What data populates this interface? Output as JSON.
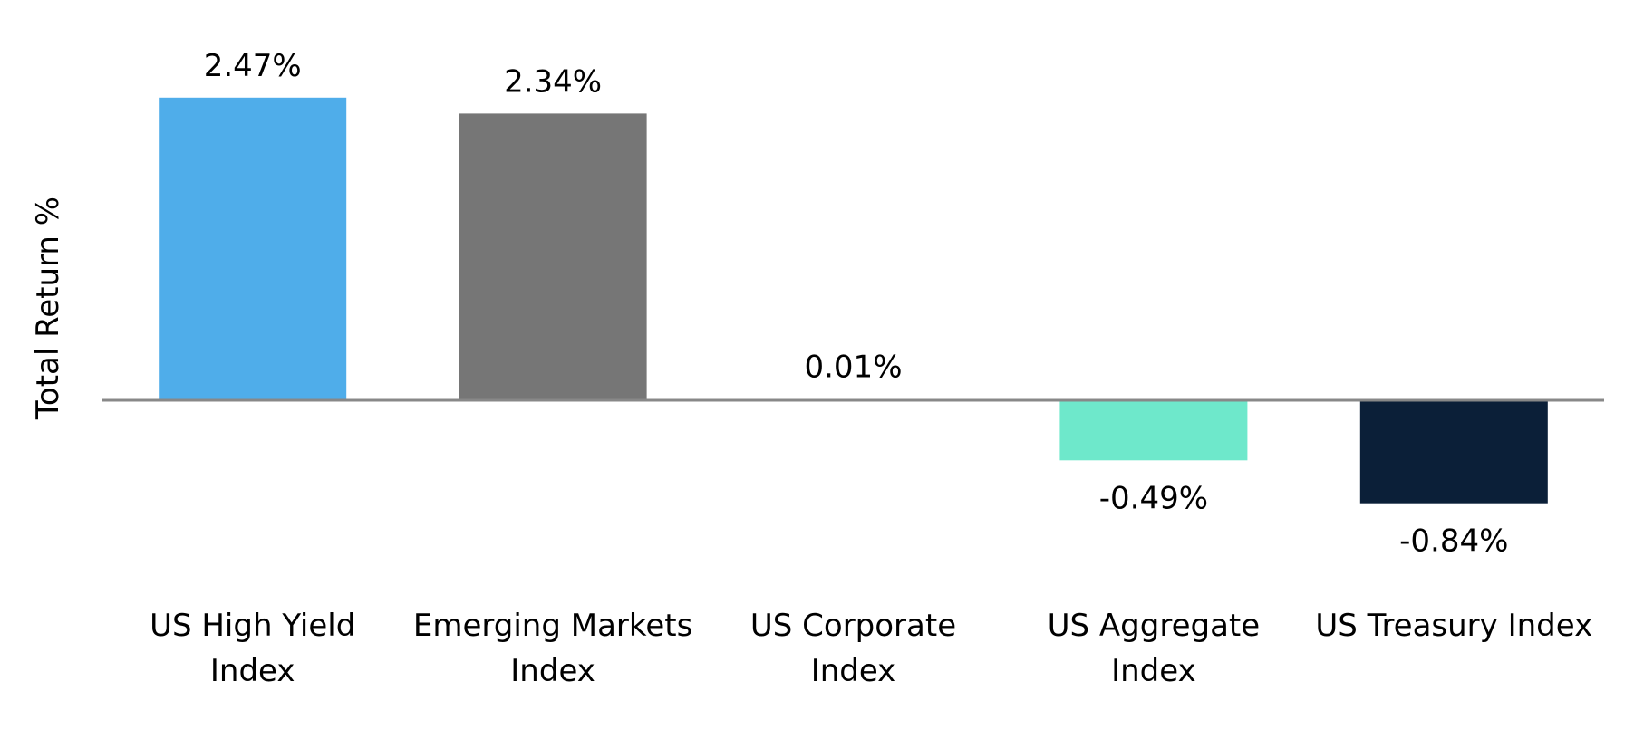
{
  "chart_data": {
    "type": "bar",
    "title": "",
    "xlabel": "",
    "ylabel": "Total Return %",
    "categories": [
      [
        "US High Yield",
        "Index"
      ],
      [
        "Emerging Markets",
        "Index"
      ],
      [
        "US Corporate",
        "Index"
      ],
      [
        "US Aggregate",
        "Index"
      ],
      [
        "US Treasury Index"
      ]
    ],
    "values": [
      2.47,
      2.34,
      0.01,
      -0.49,
      -0.84
    ],
    "data_labels": [
      "2.47%",
      "2.34%",
      "0.01%",
      "-0.49%",
      "-0.84%"
    ],
    "colors": [
      "#4FADEA",
      "#767676",
      "#FFFFFF",
      "#6EE8CB",
      "#0B1F38"
    ],
    "ylim": [
      -1.0,
      2.5
    ],
    "grid": false,
    "legend": "none",
    "zero_line_color": "#888888"
  }
}
